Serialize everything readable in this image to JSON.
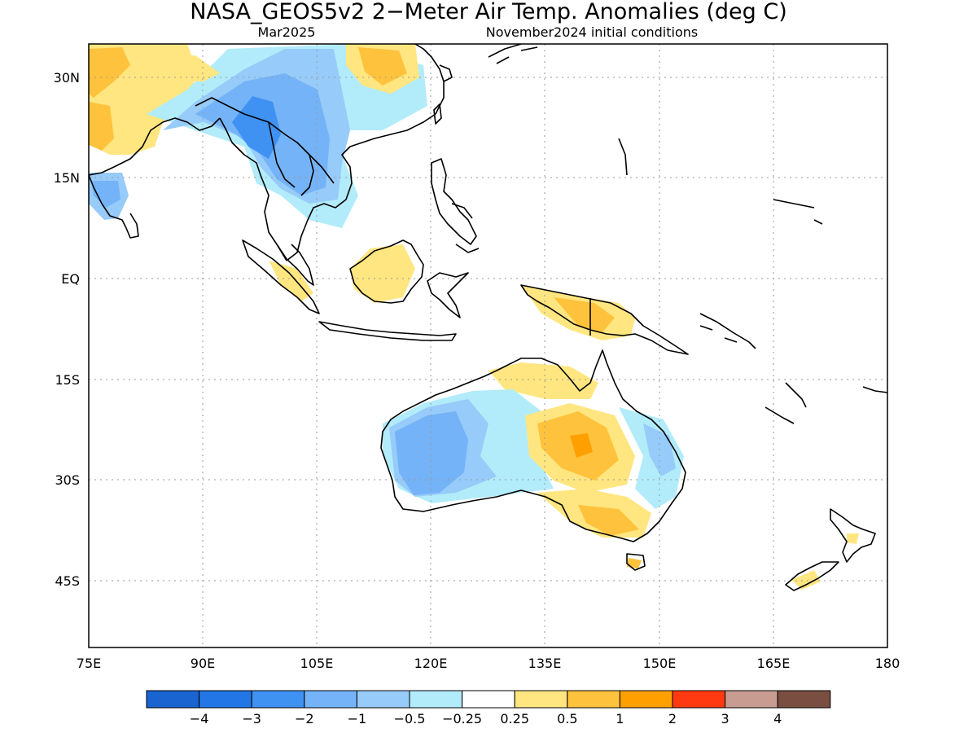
{
  "title": "NASA_GEOS5v2 2−Meter Air Temp. Anomalies (deg C)",
  "subtitle_left": "Mar2025",
  "subtitle_right": "November2024 initial conditions",
  "chart_data": {
    "type": "heatmap",
    "title": "NASA_GEOS5v2 2−Meter Air Temp. Anomalies (deg C)",
    "valid_month": "Mar2025",
    "initial_conditions": "November2024 initial conditions",
    "x_axis": {
      "range": [
        75,
        180
      ],
      "tick_values": [
        75,
        90,
        105,
        120,
        135,
        150,
        165,
        180
      ],
      "tick_labels": [
        "75E",
        "90E",
        "105E",
        "120E",
        "135E",
        "150E",
        "165E",
        "180"
      ]
    },
    "y_axis": {
      "range": [
        -55,
        35
      ],
      "tick_values": [
        30,
        15,
        0,
        -15,
        -30,
        -45
      ],
      "tick_labels": [
        "30N",
        "15N",
        "EQ",
        "15S",
        "30S",
        "45S"
      ]
    },
    "grid": true,
    "colorbar": {
      "placement": "bottom",
      "colors": [
        "#1a64d2",
        "#2276e6",
        "#3f92f2",
        "#74b3f7",
        "#97cbf9",
        "#b2ecfa",
        "#ffffff",
        "#ffe680",
        "#ffc23c",
        "#ffa000",
        "#ff3a10",
        "#c89c91",
        "#7a4e40"
      ],
      "labels": [
        "−4",
        "−3",
        "−2",
        "−1",
        "−0.5",
        "−0.25",
        "0.25",
        "0.5",
        "1",
        "2",
        "3",
        "4"
      ]
    },
    "regions": [
      {
        "lon": [
          78,
          84
        ],
        "lat": [
          26,
          35
        ],
        "value": 0.7
      },
      {
        "lon": [
          88,
          97
        ],
        "lat": [
          30,
          35
        ],
        "value": 0.6
      },
      {
        "lon": [
          100,
          112
        ],
        "lat": [
          26,
          35
        ],
        "value": -1.2
      },
      {
        "lon": [
          112,
          120
        ],
        "lat": [
          28,
          35
        ],
        "value": 1.0
      },
      {
        "lon": [
          95,
          100
        ],
        "lat": [
          21,
          27
        ],
        "value": -2.1
      },
      {
        "lon": [
          100,
          108
        ],
        "lat": [
          12,
          20
        ],
        "value": -1.3
      },
      {
        "lon": [
          75,
          80
        ],
        "lat": [
          10,
          16
        ],
        "value": -1.0
      },
      {
        "lon": [
          114,
          118
        ],
        "lat": [
          -2,
          2
        ],
        "value": 0.6
      },
      {
        "lon": [
          131,
          143
        ],
        "lat": [
          -9,
          -3
        ],
        "value": 0.7
      },
      {
        "lon": [
          116,
          126
        ],
        "lat": [
          -31,
          -20
        ],
        "value": -1.2
      },
      {
        "lon": [
          134,
          144
        ],
        "lat": [
          -26,
          -19
        ],
        "value": 1.1
      },
      {
        "lon": [
          139,
          146
        ],
        "lat": [
          -38,
          -32
        ],
        "value": 0.8
      },
      {
        "lon": [
          148,
          152
        ],
        "lat": [
          -27,
          -22
        ],
        "value": -0.6
      },
      {
        "lon": [
          167,
          170
        ],
        "lat": [
          -46,
          -44
        ],
        "value": 0.7
      }
    ]
  }
}
